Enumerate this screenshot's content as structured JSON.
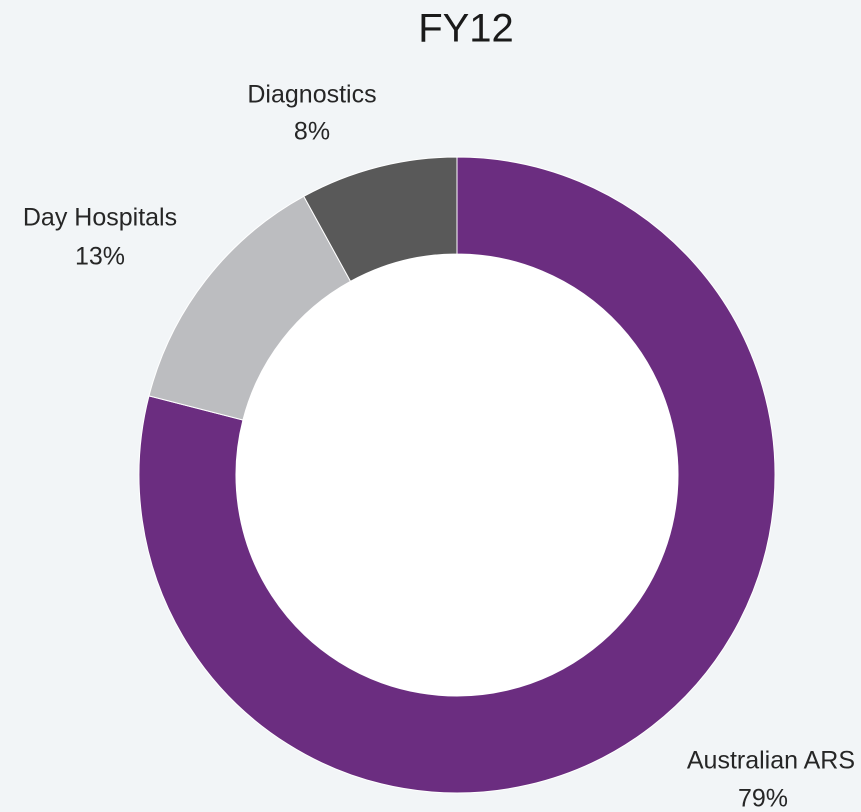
{
  "chart_data": {
    "type": "donut",
    "title": "FY12",
    "categories": [
      "Australian ARS",
      "Day Hospitals",
      "Diagnostics"
    ],
    "values": [
      79,
      13,
      8
    ],
    "value_labels": [
      "79%",
      "13%",
      "8%"
    ],
    "colors": [
      "#6b2d80",
      "#bcbdc0",
      "#595959"
    ]
  }
}
